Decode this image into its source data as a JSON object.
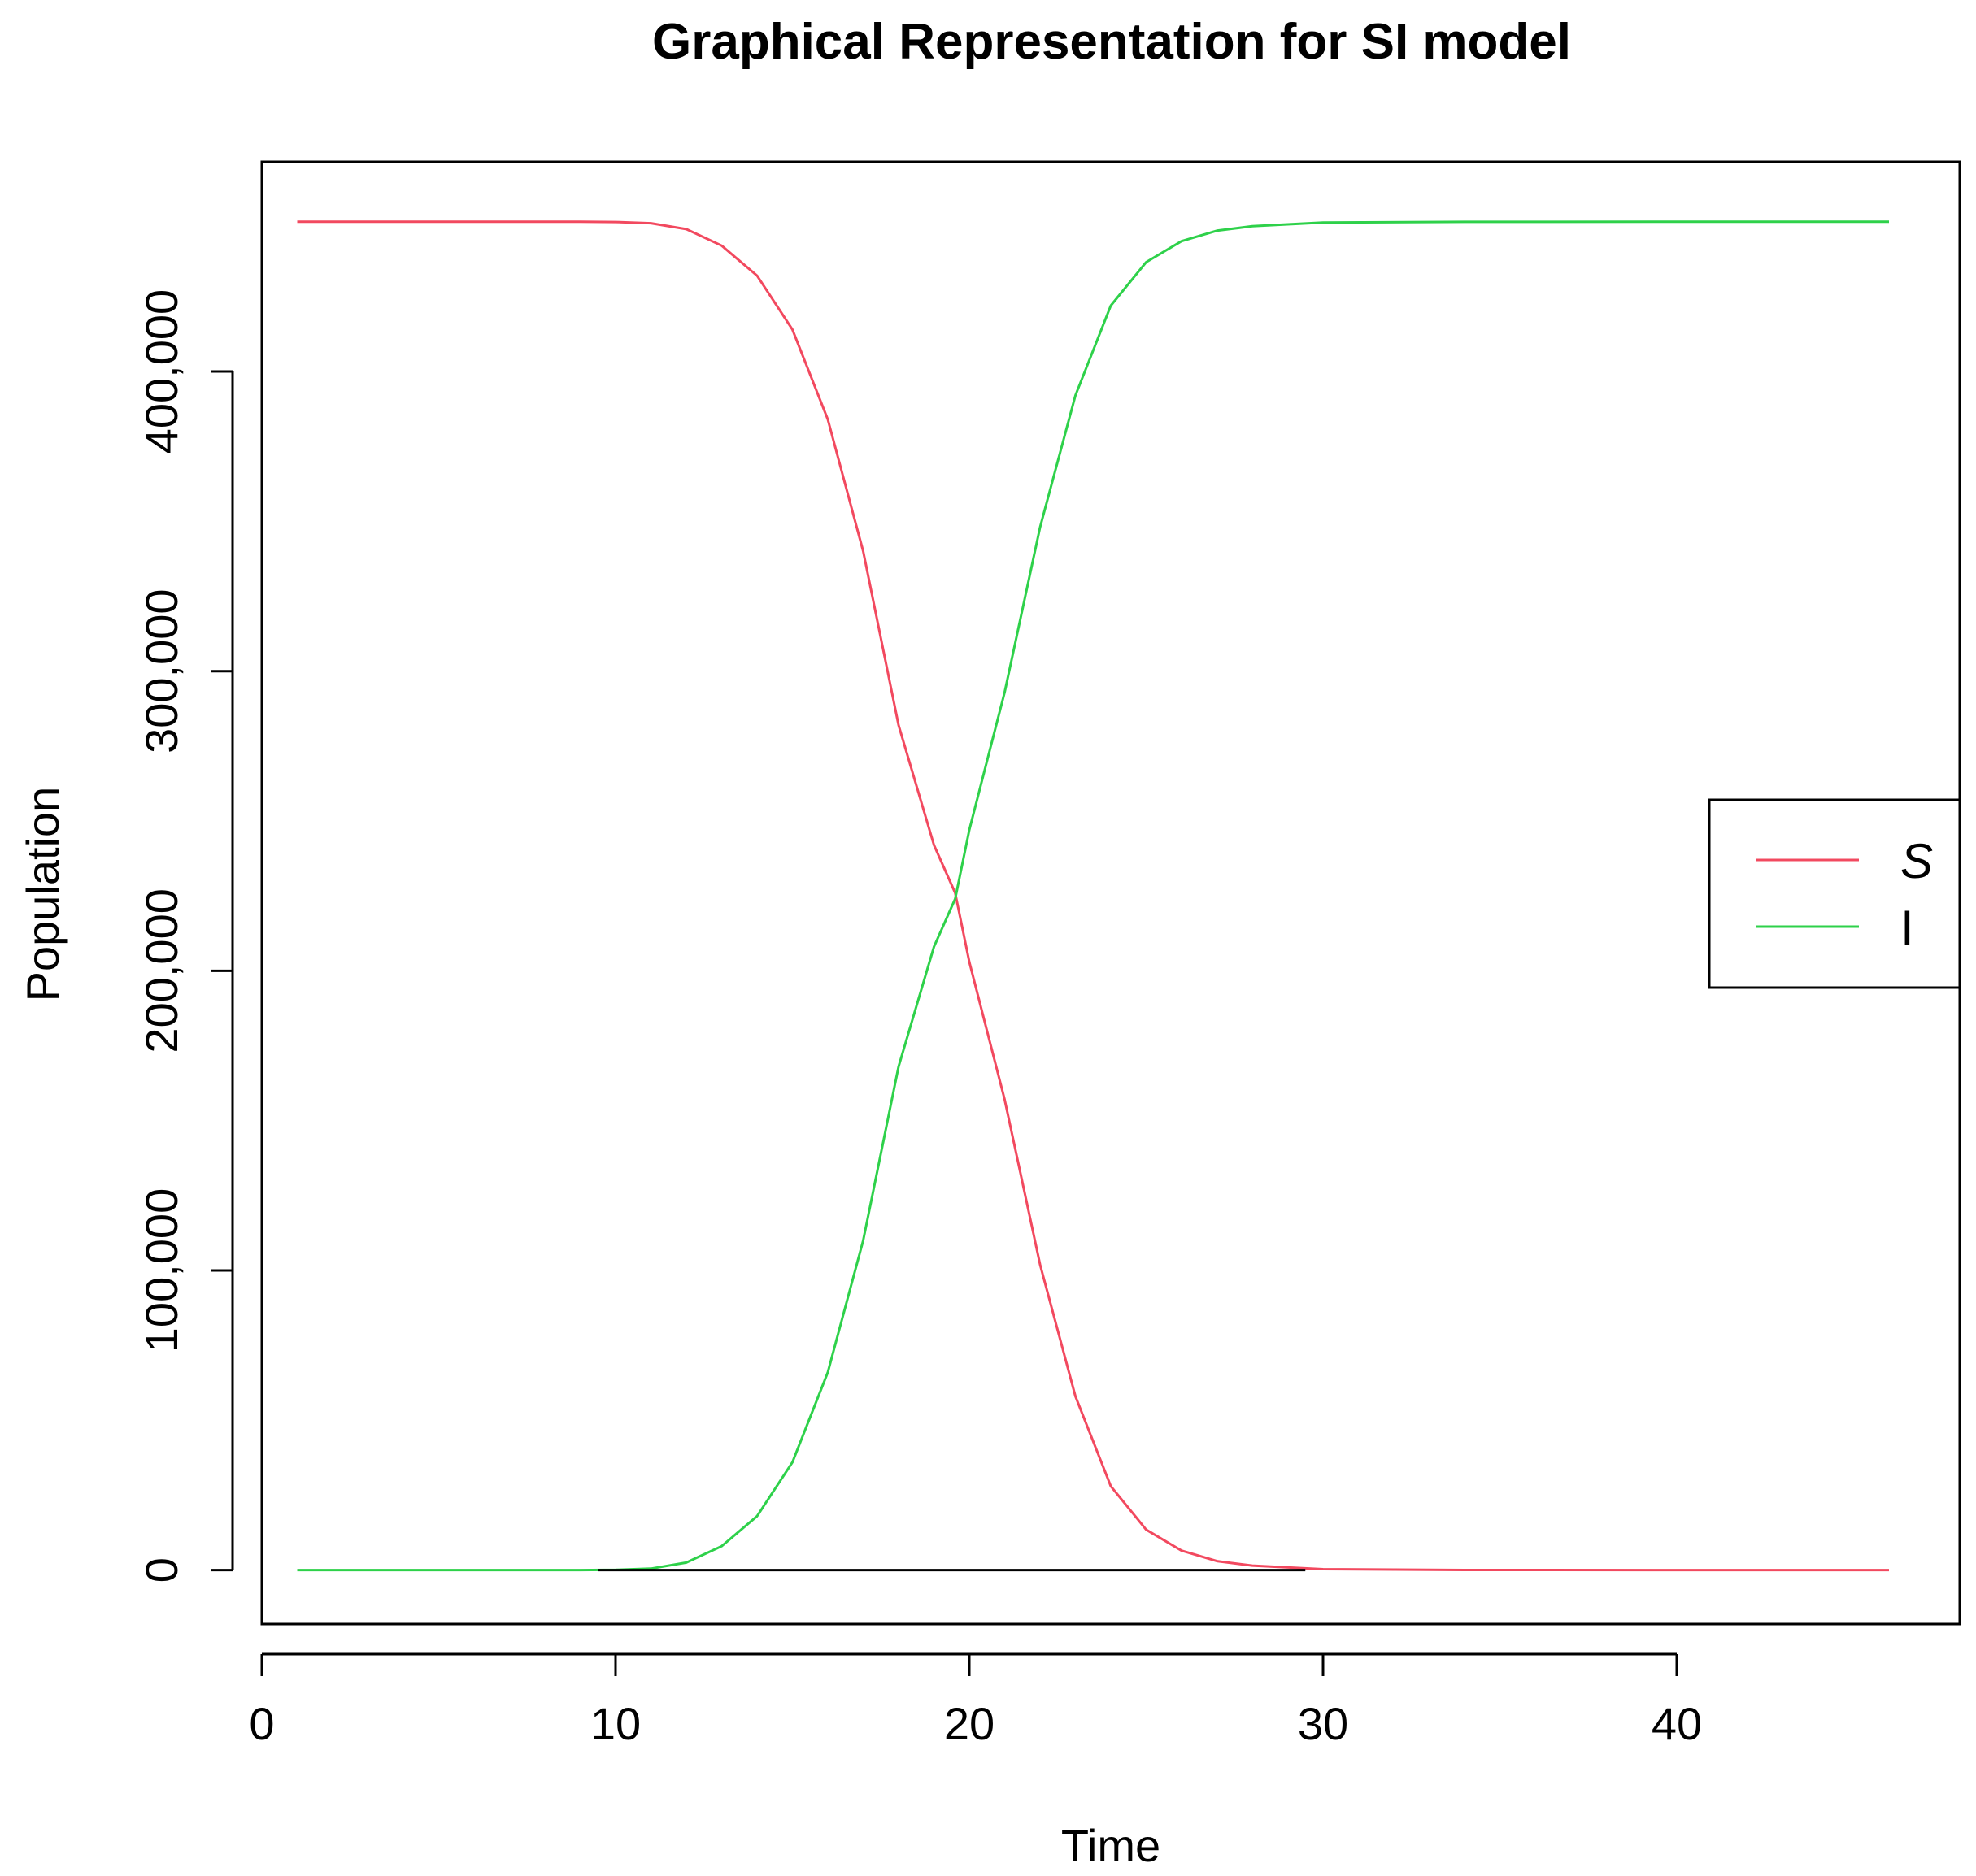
{
  "chart_data": {
    "type": "line",
    "title": "Graphical Representation for SI model",
    "xlabel": "Time",
    "ylabel": "Population",
    "xlim": [
      0,
      48
    ],
    "ylim": [
      -18000,
      470000
    ],
    "x_ticks": [
      0,
      10,
      20,
      30,
      40
    ],
    "y_ticks": [
      0,
      100000,
      200000,
      300000,
      400000
    ],
    "y_tick_labels": [
      "0",
      "100,000",
      "200,000",
      "300,000",
      "400,000"
    ],
    "grid": false,
    "legend_position": "right",
    "x": [
      1,
      4,
      7,
      9,
      10,
      11,
      12,
      13,
      14,
      15,
      16,
      17,
      18,
      19,
      19.6,
      20,
      21,
      22,
      23,
      24,
      25,
      26,
      27,
      28,
      30,
      34,
      40,
      46
    ],
    "series": [
      {
        "name": "S",
        "color": "#f2495f",
        "values": [
          450000,
          450000,
          450000,
          450000,
          449900,
          449500,
          447500,
          442000,
          432000,
          414000,
          384000,
          340000,
          282000,
          242000,
          226000,
          203000,
          157000,
          102000,
          58000,
          28000,
          13500,
          6500,
          3000,
          1500,
          300,
          50,
          0,
          0
        ]
      },
      {
        "name": "I",
        "color": "#2ed14a",
        "values": [
          0,
          0,
          0,
          0,
          100,
          500,
          2500,
          8000,
          18000,
          36000,
          66000,
          110000,
          168000,
          208000,
          224000,
          247000,
          293000,
          348000,
          392000,
          422000,
          436500,
          443500,
          447000,
          448500,
          449700,
          449950,
          450000,
          450000
        ]
      }
    ],
    "baseline": {
      "color": "#000000",
      "x_range": [
        9.5,
        29.5
      ],
      "y": 0
    }
  }
}
